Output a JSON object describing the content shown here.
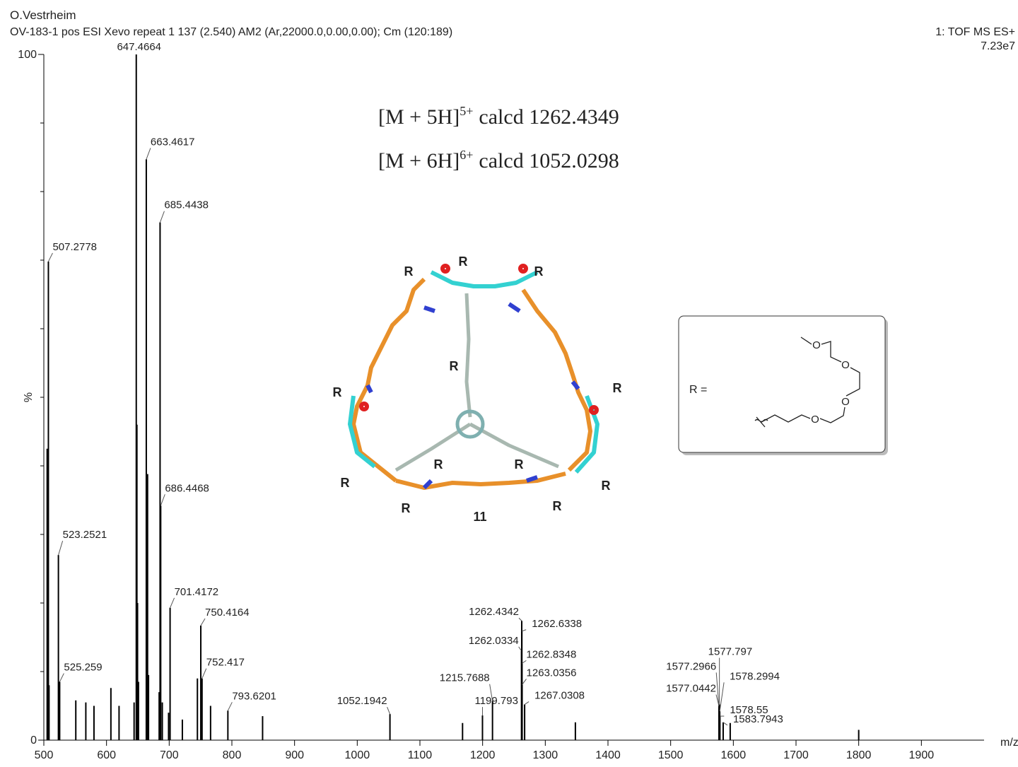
{
  "chart_data": {
    "type": "stick",
    "header": "O.Vestrheim",
    "subtitle": "OV-183-1 pos ESI Xevo repeat 1 137 (2.540) AM2 (Ar,22000.0,0.00,0.00); Cm (120:189)",
    "instrument": "1: TOF MS ES+",
    "intensity": "7.23e7",
    "annotations": [
      {
        "text": "[M + 5H]",
        "sup": "5+",
        "rest": "calcd 1262.4349"
      },
      {
        "text": "[M + 6H]",
        "sup": "6+",
        "rest": "calcd 1052.0298"
      }
    ],
    "x_label": "m/z",
    "y_label": "%",
    "xlim": [
      500,
      2000
    ],
    "xticks": [
      500,
      600,
      700,
      800,
      900,
      1000,
      1100,
      1200,
      1300,
      1400,
      1500,
      1600,
      1700,
      1800,
      1900
    ],
    "ylim": [
      0,
      100
    ],
    "yticks": [
      0,
      100
    ],
    "y_minor_ticks": [
      10,
      20,
      30,
      40,
      50,
      60,
      70,
      80,
      90
    ],
    "color": "#000000",
    "peaks": {
      "x": [
        507.2778,
        523.2521,
        525.259,
        647.4664,
        663.4617,
        685.4438,
        686.4468,
        701.4172,
        750.4164,
        752.417,
        793.6201,
        1052.1942,
        1199.793,
        1215.7688,
        1262.0334,
        1262.4342,
        1262.6338,
        1262.8348,
        1263.0356,
        1267.0308,
        1577.0442,
        1577.2966,
        1577.797,
        1578.2994,
        1578.55,
        1583.7943
      ],
      "values": [
        69.8,
        27.0,
        8.5,
        100,
        84.7,
        75.5,
        34.2,
        19.3,
        16.7,
        9.0,
        4.3,
        3.8,
        3.6,
        5.7,
        13.0,
        17.4,
        15.9,
        11.2,
        8.1,
        5.2,
        5.0,
        4.6,
        5.2,
        4.2,
        3.5,
        2.6
      ]
    },
    "minor_peaks": {
      "x": [
        505.3,
        506.3,
        508.3,
        551,
        567,
        580,
        607,
        620,
        644,
        648.5,
        649.5,
        651,
        665.5,
        667,
        684,
        689,
        699,
        721,
        745,
        766,
        849,
        1168,
        1348,
        1595,
        1800
      ],
      "values": [
        42.5,
        21.4,
        8.0,
        5.8,
        5.5,
        5.0,
        7.6,
        5.0,
        5.5,
        46.0,
        20,
        8.5,
        38.8,
        9.5,
        7.0,
        5.5,
        4.0,
        3.0,
        9.0,
        5.0,
        3.5,
        2.5,
        2.6,
        2.5,
        1.5
      ]
    }
  },
  "structure": {
    "label": "11",
    "substituent": "R",
    "legend": "R =",
    "oxygen": "O"
  }
}
